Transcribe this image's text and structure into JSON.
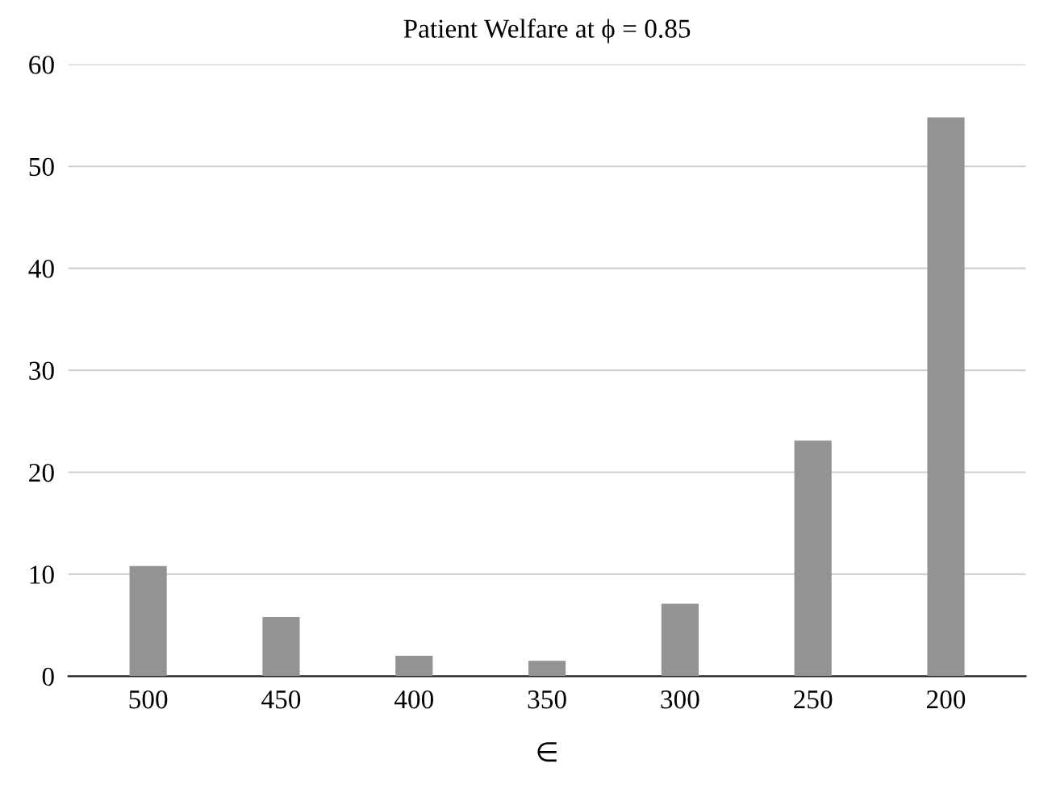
{
  "chart_data": {
    "type": "bar",
    "title": "Patient Welfare at ϕ = 0.85",
    "xlabel": "∈",
    "categories": [
      "500",
      "450",
      "400",
      "350",
      "300",
      "250",
      "200"
    ],
    "values": [
      10.8,
      5.8,
      2.0,
      1.5,
      7.1,
      23.1,
      54.8
    ],
    "color": "#939393",
    "ylim": [
      0,
      60
    ],
    "yticks": [
      0,
      10,
      20,
      30,
      40,
      50,
      60
    ],
    "grid": "y",
    "legend": false
  }
}
